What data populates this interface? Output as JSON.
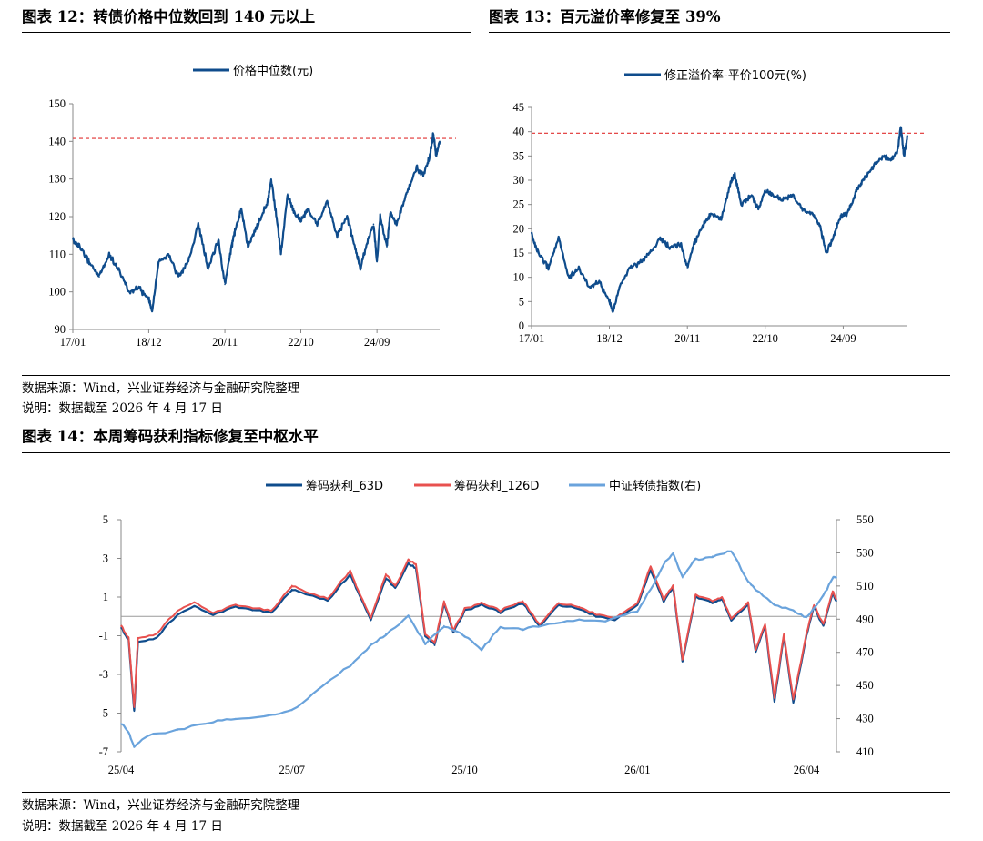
{
  "fig12": {
    "title": "图表 12：转债价格中位数回到 140 元以上"
  },
  "fig13": {
    "title": "图表 13：百元溢价率修复至 39%"
  },
  "fig14": {
    "title": "图表 14：本周筹码获利指标修复至中枢水平"
  },
  "notes": {
    "source_top": "数据来源：Wind，兴业证券经济与金融研究院整理",
    "date_top": "说明：数据截至 2026 年 4 月 17 日",
    "source_bottom": "数据来源：Wind，兴业证券经济与金融研究院整理",
    "date_bottom": "说明：数据截至 2026 年 4 月 17 日"
  },
  "colors": {
    "dark_blue": "#0f4c8c",
    "red": "#e8514f",
    "light_blue": "#6aa3dc",
    "ref_red": "#e03030",
    "axis": "#888888"
  },
  "chart_data": [
    {
      "type": "line",
      "legend": [
        "价格中位数(元)"
      ],
      "x_ticks": [
        "17/01",
        "18/12",
        "20/11",
        "22/10",
        "24/09"
      ],
      "y_ticks": [
        "90",
        "100",
        "110",
        "120",
        "130",
        "140",
        "150"
      ],
      "ylim": [
        90,
        150
      ],
      "reference_line": 140.8,
      "legend_position": "top-center",
      "series": [
        {
          "name": "价格中位数(元)",
          "x": [
            "2017-01",
            "2017-03",
            "2017-06",
            "2017-09",
            "2017-12",
            "2018-03",
            "2018-06",
            "2018-09",
            "2018-12",
            "2019-01",
            "2019-03",
            "2019-06",
            "2019-09",
            "2019-12",
            "2020-03",
            "2020-06",
            "2020-09",
            "2020-11",
            "2021-01",
            "2021-02",
            "2021-04",
            "2021-06",
            "2021-09",
            "2021-12",
            "2022-01",
            "2022-03",
            "2022-04",
            "2022-06",
            "2022-08",
            "2022-10",
            "2022-12",
            "2023-03",
            "2023-06",
            "2023-09",
            "2023-12",
            "2024-02",
            "2024-04",
            "2024-06",
            "2024-08",
            "2024-09",
            "2024-10",
            "2024-12",
            "2025-01",
            "2025-03",
            "2025-06",
            "2025-09",
            "2025-11",
            "2026-01",
            "2026-02",
            "2026-03",
            "2026-04"
          ],
          "values": [
            114,
            112,
            108,
            104,
            110,
            106,
            100,
            101,
            98,
            95,
            108,
            110,
            104,
            108,
            118,
            106,
            114,
            102,
            112,
            116,
            122,
            112,
            118,
            124,
            130,
            118,
            110,
            126,
            121,
            119,
            122,
            118,
            124,
            115,
            120,
            113,
            106,
            113,
            118,
            108,
            120,
            112,
            121,
            118,
            126,
            133,
            131,
            136,
            142,
            136,
            140
          ]
        }
      ]
    },
    {
      "type": "line",
      "legend": [
        "修正溢价率-平价100元(%)"
      ],
      "x_ticks": [
        "17/01",
        "18/12",
        "20/11",
        "22/10",
        "24/09"
      ],
      "y_ticks": [
        "0",
        "5",
        "10",
        "15",
        "20",
        "25",
        "30",
        "35",
        "40",
        "45"
      ],
      "ylim": [
        0,
        45
      ],
      "reference_line": 39.7,
      "legend_position": "top-center",
      "series": [
        {
          "name": "修正溢价率-平价100元(%)",
          "x": [
            "2017-01",
            "2017-03",
            "2017-06",
            "2017-09",
            "2017-12",
            "2018-03",
            "2018-06",
            "2018-09",
            "2018-12",
            "2019-01",
            "2019-03",
            "2019-06",
            "2019-09",
            "2019-12",
            "2020-03",
            "2020-06",
            "2020-09",
            "2020-11",
            "2021-01",
            "2021-04",
            "2021-06",
            "2021-09",
            "2021-12",
            "2022-01",
            "2022-03",
            "2022-06",
            "2022-08",
            "2022-10",
            "2022-12",
            "2023-03",
            "2023-06",
            "2023-09",
            "2023-12",
            "2024-02",
            "2024-04",
            "2024-06",
            "2024-08",
            "2024-09",
            "2024-10",
            "2024-12",
            "2025-01",
            "2025-03",
            "2025-06",
            "2025-09",
            "2025-11",
            "2026-01",
            "2026-02",
            "2026-03",
            "2026-04"
          ],
          "values": [
            19,
            15,
            12,
            18,
            10,
            12,
            8,
            9,
            5,
            3,
            8,
            12,
            13,
            15,
            18,
            16,
            17,
            12,
            17,
            21,
            23,
            22,
            30,
            31,
            25,
            27,
            24,
            28,
            27,
            26,
            27,
            24,
            23,
            21,
            15,
            18,
            22,
            23,
            23,
            26,
            28,
            30,
            33,
            35,
            34,
            36,
            41,
            35,
            39
          ]
        }
      ]
    },
    {
      "type": "line",
      "legend": [
        "筹码获利_63D",
        "筹码获利_126D",
        "中证转债指数(右)"
      ],
      "x_ticks": [
        "25/04",
        "25/07",
        "25/10",
        "26/01",
        "26/04"
      ],
      "y_ticks_left": [
        "-7",
        "-5",
        "-3",
        "-1",
        "1",
        "3",
        "5"
      ],
      "y_ticks_right": [
        "410",
        "430",
        "450",
        "470",
        "490",
        "510",
        "530",
        "550"
      ],
      "ylim_left": [
        -7,
        5
      ],
      "ylim_right": [
        410,
        550
      ],
      "reference_line": 0,
      "legend_position": "top-center",
      "series": [
        {
          "name": "筹码获利_63D",
          "x": [
            "2025-04-01",
            "2025-04-05",
            "2025-04-08",
            "2025-04-10",
            "2025-04-20",
            "2025-05-01",
            "2025-05-10",
            "2025-05-20",
            "2025-06-01",
            "2025-06-10",
            "2025-06-20",
            "2025-07-01",
            "2025-07-10",
            "2025-07-20",
            "2025-08-01",
            "2025-08-05",
            "2025-08-12",
            "2025-08-20",
            "2025-08-25",
            "2025-09-01",
            "2025-09-05",
            "2025-09-10",
            "2025-09-15",
            "2025-09-20",
            "2025-09-25",
            "2025-10-01",
            "2025-10-10",
            "2025-10-20",
            "2025-11-01",
            "2025-11-10",
            "2025-11-20",
            "2025-12-01",
            "2025-12-10",
            "2025-12-20",
            "2026-01-01",
            "2026-01-08",
            "2026-01-15",
            "2026-01-20",
            "2026-01-25",
            "2026-02-01",
            "2026-02-10",
            "2026-02-15",
            "2026-02-20",
            "2026-03-01",
            "2026-03-05",
            "2026-03-10",
            "2026-03-15",
            "2026-03-20",
            "2026-03-25",
            "2026-04-01",
            "2026-04-05",
            "2026-04-10",
            "2026-04-15",
            "2026-04-17"
          ],
          "values": [
            -0.6,
            -1.2,
            -4.9,
            -1.3,
            -1.1,
            0.1,
            0.5,
            0.1,
            0.5,
            0.3,
            0.2,
            1.4,
            1.1,
            0.8,
            2.2,
            1.3,
            -0.2,
            2.0,
            1.5,
            2.7,
            2.5,
            -1.0,
            -1.5,
            0.7,
            -0.8,
            0.3,
            0.6,
            0.2,
            0.7,
            -0.5,
            0.6,
            0.4,
            0.0,
            -0.2,
            0.6,
            2.4,
            0.8,
            1.5,
            -2.3,
            1.0,
            0.7,
            0.9,
            -0.2,
            0.6,
            -1.8,
            -0.5,
            -4.4,
            -1.0,
            -4.5,
            -1.0,
            0.5,
            -0.5,
            1.2,
            0.8
          ]
        },
        {
          "name": "筹码获利_126D",
          "x": [
            "2025-04-01",
            "2025-04-05",
            "2025-04-08",
            "2025-04-10",
            "2025-04-20",
            "2025-05-01",
            "2025-05-10",
            "2025-05-20",
            "2025-06-01",
            "2025-06-10",
            "2025-06-20",
            "2025-07-01",
            "2025-07-10",
            "2025-07-20",
            "2025-08-01",
            "2025-08-05",
            "2025-08-12",
            "2025-08-20",
            "2025-08-25",
            "2025-09-01",
            "2025-09-05",
            "2025-09-10",
            "2025-09-15",
            "2025-09-20",
            "2025-09-25",
            "2025-10-01",
            "2025-10-10",
            "2025-10-20",
            "2025-11-01",
            "2025-11-10",
            "2025-11-20",
            "2025-12-01",
            "2025-12-10",
            "2025-12-20",
            "2026-01-01",
            "2026-01-08",
            "2026-01-15",
            "2026-01-20",
            "2026-01-25",
            "2026-02-01",
            "2026-02-10",
            "2026-02-15",
            "2026-02-20",
            "2026-03-01",
            "2026-03-05",
            "2026-03-10",
            "2026-03-15",
            "2026-03-20",
            "2026-03-25",
            "2026-04-01",
            "2026-04-05",
            "2026-04-10",
            "2026-04-15",
            "2026-04-17"
          ],
          "values": [
            -0.5,
            -1.1,
            -4.7,
            -1.1,
            -0.9,
            0.3,
            0.7,
            0.2,
            0.6,
            0.4,
            0.3,
            1.6,
            1.2,
            0.9,
            2.4,
            1.4,
            -0.1,
            2.2,
            1.6,
            2.9,
            2.7,
            -0.9,
            -1.4,
            0.8,
            -0.7,
            0.4,
            0.7,
            0.3,
            0.8,
            -0.4,
            0.7,
            0.5,
            0.1,
            -0.1,
            0.7,
            2.6,
            0.9,
            1.6,
            -2.2,
            1.1,
            0.8,
            1.0,
            -0.1,
            0.7,
            -1.7,
            -0.4,
            -4.2,
            -0.9,
            -4.3,
            -0.9,
            0.6,
            -0.4,
            1.3,
            0.9
          ]
        },
        {
          "name": "中证转债指数(右)",
          "x": [
            "2025-04-01",
            "2025-04-05",
            "2025-04-08",
            "2025-04-15",
            "2025-05-01",
            "2025-05-20",
            "2025-06-01",
            "2025-06-20",
            "2025-07-01",
            "2025-07-15",
            "2025-08-01",
            "2025-08-12",
            "2025-08-20",
            "2025-09-01",
            "2025-09-10",
            "2025-09-20",
            "2025-10-01",
            "2025-10-10",
            "2025-10-20",
            "2025-11-01",
            "2025-11-15",
            "2025-12-01",
            "2025-12-15",
            "2026-01-01",
            "2026-01-10",
            "2026-01-15",
            "2026-01-20",
            "2026-01-25",
            "2026-02-01",
            "2026-02-10",
            "2026-02-20",
            "2026-03-01",
            "2026-03-05",
            "2026-03-15",
            "2026-03-25",
            "2026-04-01",
            "2026-04-10",
            "2026-04-15",
            "2026-04-17"
          ],
          "values": [
            427,
            422,
            413,
            420,
            423,
            428,
            430,
            432,
            435,
            448,
            462,
            474,
            481,
            492,
            475,
            486,
            480,
            472,
            485,
            484,
            487,
            490,
            489,
            495,
            512,
            523,
            530,
            515,
            526,
            528,
            531,
            513,
            508,
            499,
            495,
            491,
            504,
            515,
            515
          ]
        }
      ]
    }
  ]
}
